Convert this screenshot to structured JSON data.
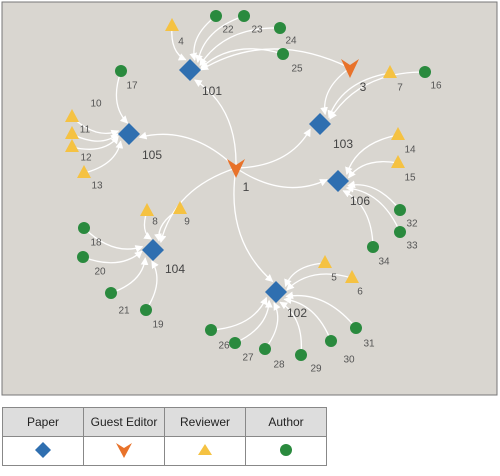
{
  "papers": [
    "101",
    "103",
    "105",
    "106",
    "104",
    "102"
  ],
  "guest_editors": [
    "1",
    "3"
  ],
  "reviewers": [
    "4",
    "7",
    "10",
    "11",
    "12",
    "13",
    "14",
    "15",
    "8",
    "9",
    "5",
    "6"
  ],
  "authors": [
    "22",
    "23",
    "24",
    "25",
    "16",
    "17",
    "18",
    "20",
    "21",
    "19",
    "32",
    "33",
    "34",
    "26",
    "27",
    "28",
    "29",
    "30",
    "31"
  ],
  "legend": {
    "headers": [
      "Paper",
      "Guest Editor",
      "Reviewer",
      "Author"
    ]
  }
}
